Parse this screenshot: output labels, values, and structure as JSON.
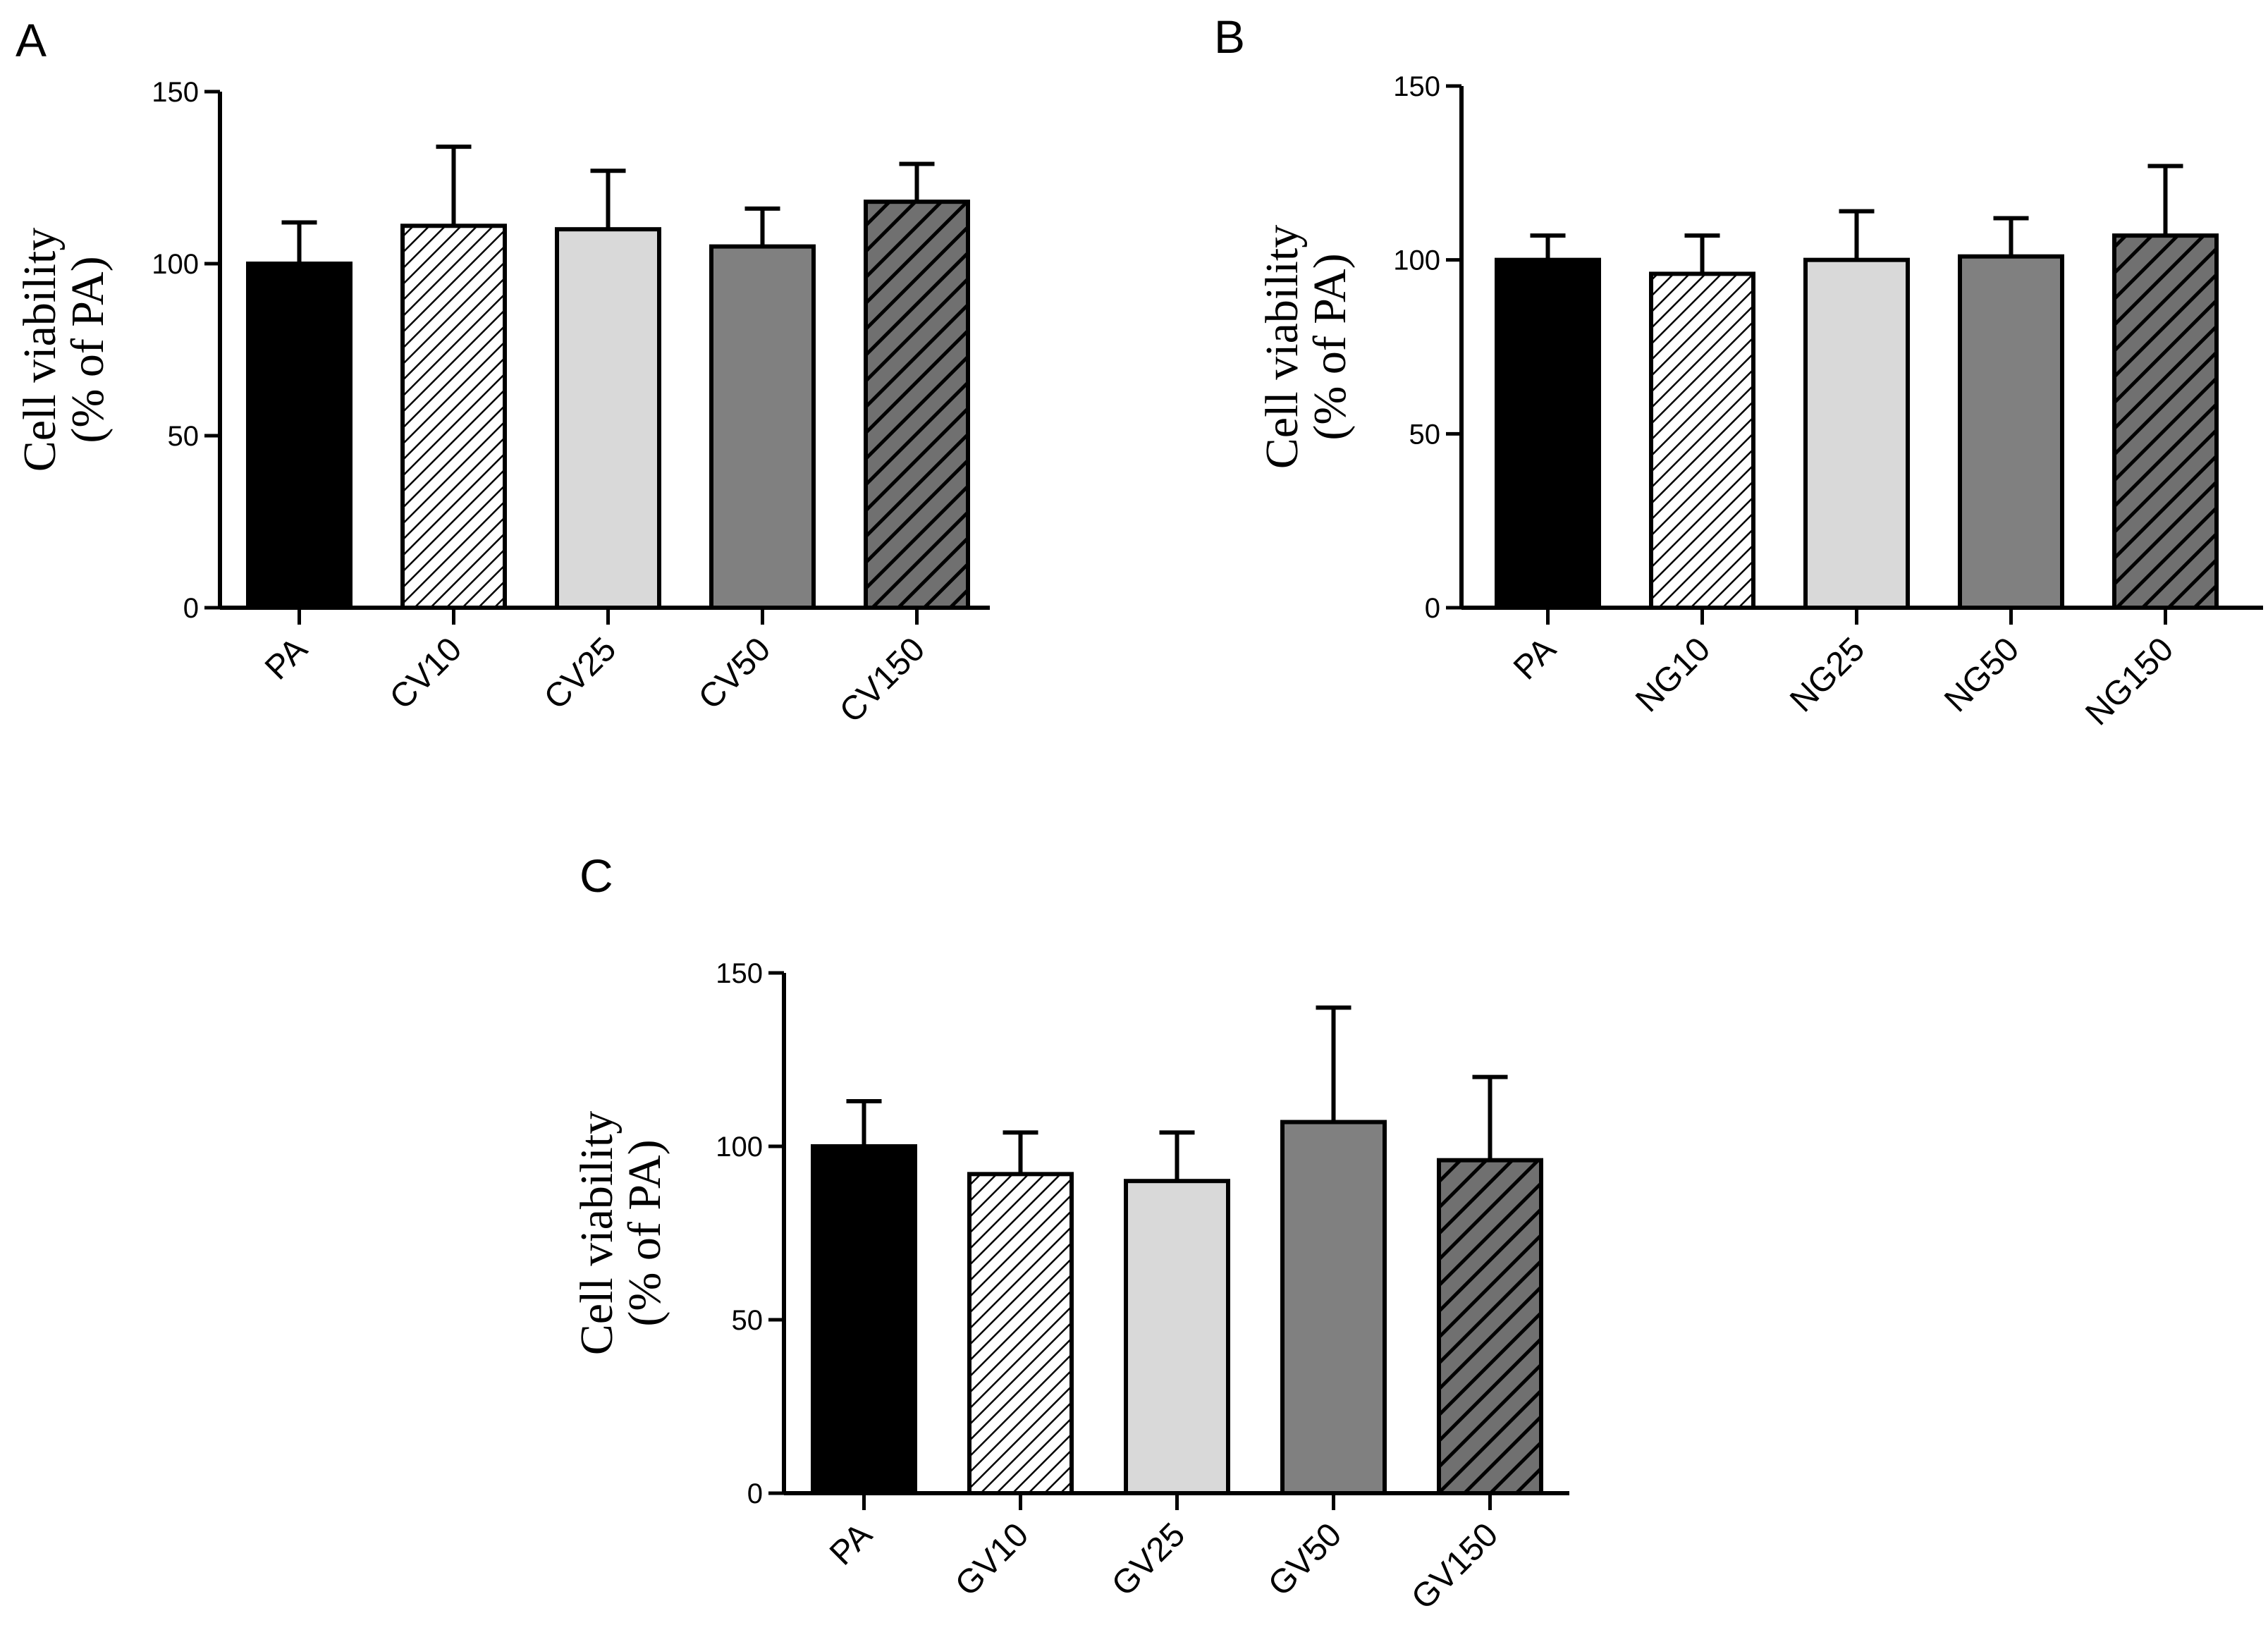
{
  "chart_data": [
    {
      "panel": "A",
      "type": "bar",
      "ylabel_line1": "Cell viability",
      "ylabel_line2": "(% of PA)",
      "ylim": [
        0,
        150
      ],
      "yticks": [
        0,
        50,
        100,
        150
      ],
      "categories": [
        "PA",
        "CV10",
        "CV25",
        "CV50",
        "CV150"
      ],
      "values": [
        100,
        111,
        110,
        105,
        118
      ],
      "errors": [
        12,
        23,
        17,
        11,
        11
      ],
      "fills": [
        "solid-black",
        "hatch-light",
        "solid-lightgray",
        "solid-gray",
        "hatch-dark"
      ]
    },
    {
      "panel": "B",
      "type": "bar",
      "ylabel_line1": "Cell viability",
      "ylabel_line2": "(% of PA)",
      "ylim": [
        0,
        150
      ],
      "yticks": [
        0,
        50,
        100,
        150
      ],
      "categories": [
        "PA",
        "NG10",
        "NG25",
        "NG50",
        "NG150"
      ],
      "values": [
        100,
        96,
        100,
        101,
        107
      ],
      "errors": [
        7,
        11,
        14,
        11,
        20
      ],
      "fills": [
        "solid-black",
        "hatch-light",
        "solid-lightgray",
        "solid-gray",
        "hatch-dark"
      ]
    },
    {
      "panel": "C",
      "type": "bar",
      "ylabel_line1": "Cell viability",
      "ylabel_line2": "(% of PA)",
      "ylim": [
        0,
        150
      ],
      "yticks": [
        0,
        50,
        100,
        150
      ],
      "categories": [
        "PA",
        "GV10",
        "GV25",
        "GV50",
        "GV150"
      ],
      "values": [
        100,
        92,
        90,
        107,
        96
      ],
      "errors": [
        13,
        12,
        14,
        33,
        24
      ],
      "fills": [
        "solid-black",
        "hatch-light",
        "solid-lightgray",
        "solid-gray",
        "hatch-dark"
      ]
    }
  ],
  "colors": {
    "black": "#000000",
    "light_gray": "#d9d9d9",
    "mid_gray": "#808080",
    "hatch_light_bg": "#ffffff",
    "hatch_dark_bg": "#707070"
  }
}
